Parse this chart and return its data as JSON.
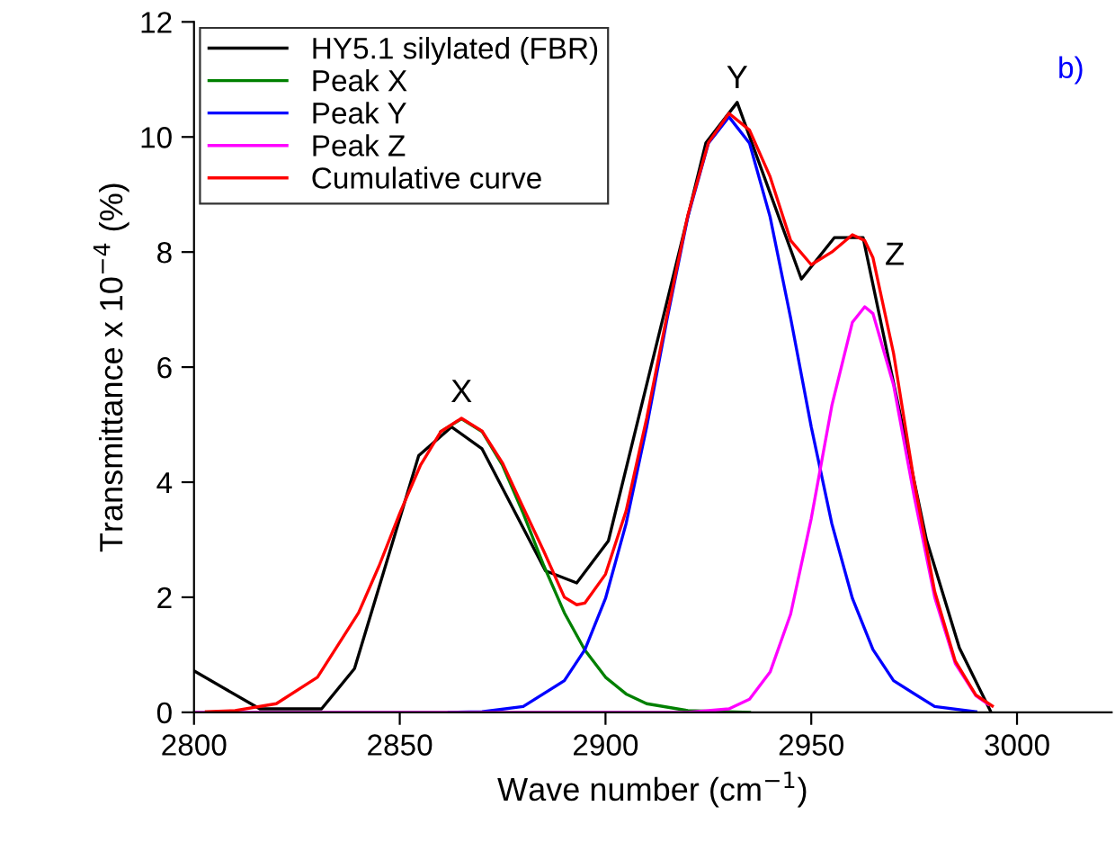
{
  "chart_data": {
    "type": "line",
    "xlabel": "Wave number (cm$^{−1}$)",
    "ylabel": "Transmittance x 10$^{−4}$ (%)",
    "xlim": [
      2800,
      3023
    ],
    "ylim": [
      0,
      12
    ],
    "xticks": [
      2800,
      2850,
      2900,
      2950,
      3000
    ],
    "yticks": [
      0,
      2,
      4,
      6,
      8,
      10,
      12
    ],
    "grid": false,
    "legend": "top left",
    "marker": "none",
    "line_style": "solid",
    "series": [
      {
        "name": "HY5.1 silylated (FBR)",
        "color": "#000000",
        "x": [
          2800,
          2816,
          2831,
          2839,
          2854.6,
          2862.6,
          2870,
          2885.4,
          2893,
          2900.7,
          2924.4,
          2932,
          2947.6,
          2955.6,
          2962.6,
          2978,
          2986,
          2993.5
        ],
        "values": [
          0.72,
          0.06,
          0.06,
          0.76,
          4.46,
          4.96,
          4.58,
          2.46,
          2.25,
          2.98,
          9.9,
          10.6,
          7.53,
          8.25,
          8.25,
          3.0,
          1.12,
          0.03
        ]
      },
      {
        "name": "Peak X",
        "color": "#008000",
        "x": [
          2860,
          2865,
          2870,
          2875,
          2880,
          2885,
          2890,
          2895,
          2900,
          2905,
          2910,
          2920,
          2935
        ],
        "values": [
          4.88,
          5.1,
          4.88,
          4.29,
          3.46,
          2.55,
          1.73,
          1.08,
          0.61,
          0.32,
          0.15,
          0.03,
          0.0
        ]
      },
      {
        "name": "Peak Y",
        "color": "#0000ff",
        "x": [
          2862,
          2870,
          2880,
          2890,
          2895,
          2900,
          2905,
          2910,
          2915,
          2920,
          2925,
          2930,
          2935,
          2940,
          2945,
          2950,
          2955,
          2960,
          2965,
          2970,
          2980,
          2990
        ],
        "values": [
          0.0,
          0.01,
          0.1,
          0.55,
          1.09,
          1.98,
          3.28,
          4.96,
          6.85,
          8.61,
          9.89,
          10.35,
          9.89,
          8.61,
          6.85,
          4.96,
          3.28,
          1.98,
          1.09,
          0.55,
          0.1,
          0.01
        ]
      },
      {
        "name": "Peak Z",
        "color": "#ff00ff",
        "x": [
          2800,
          2920,
          2930,
          2935,
          2940,
          2945,
          2950,
          2955,
          2960,
          2963,
          2965,
          2970,
          2975,
          2980,
          2985,
          2990,
          2993
        ],
        "values": [
          0.0,
          0.0,
          0.06,
          0.23,
          0.7,
          1.71,
          3.37,
          5.33,
          6.78,
          7.05,
          6.93,
          5.69,
          3.76,
          2.0,
          0.85,
          0.29,
          0.14
        ]
      },
      {
        "name": "Cumulative curve",
        "color": "#ff0000",
        "x": [
          2803,
          2810,
          2820,
          2830,
          2840,
          2845,
          2850,
          2855,
          2860,
          2865,
          2870,
          2875,
          2880,
          2885,
          2890,
          2893,
          2895,
          2900,
          2905,
          2910,
          2915,
          2920,
          2925,
          2930,
          2935,
          2940,
          2945,
          2950,
          2955,
          2960,
          2963,
          2965,
          2970,
          2975,
          2980,
          2985,
          2990,
          2994
        ],
        "values": [
          0.01,
          0.03,
          0.15,
          0.61,
          1.73,
          2.55,
          3.46,
          4.29,
          4.88,
          5.11,
          4.89,
          4.33,
          3.56,
          2.8,
          2.0,
          1.87,
          1.9,
          2.4,
          3.5,
          5.11,
          6.92,
          8.64,
          9.9,
          10.41,
          10.12,
          9.31,
          8.2,
          7.78,
          8.0,
          8.3,
          8.2,
          7.9,
          6.24,
          4.01,
          2.1,
          0.89,
          0.3,
          0.11
        ]
      }
    ],
    "annotations": [
      {
        "text": "X",
        "x": 2865,
        "y": 5.1
      },
      {
        "text": "Y",
        "x": 2932,
        "y": 10.6
      },
      {
        "text": "Z",
        "x": 2963,
        "y": 7.05
      },
      "b)"
    ]
  }
}
